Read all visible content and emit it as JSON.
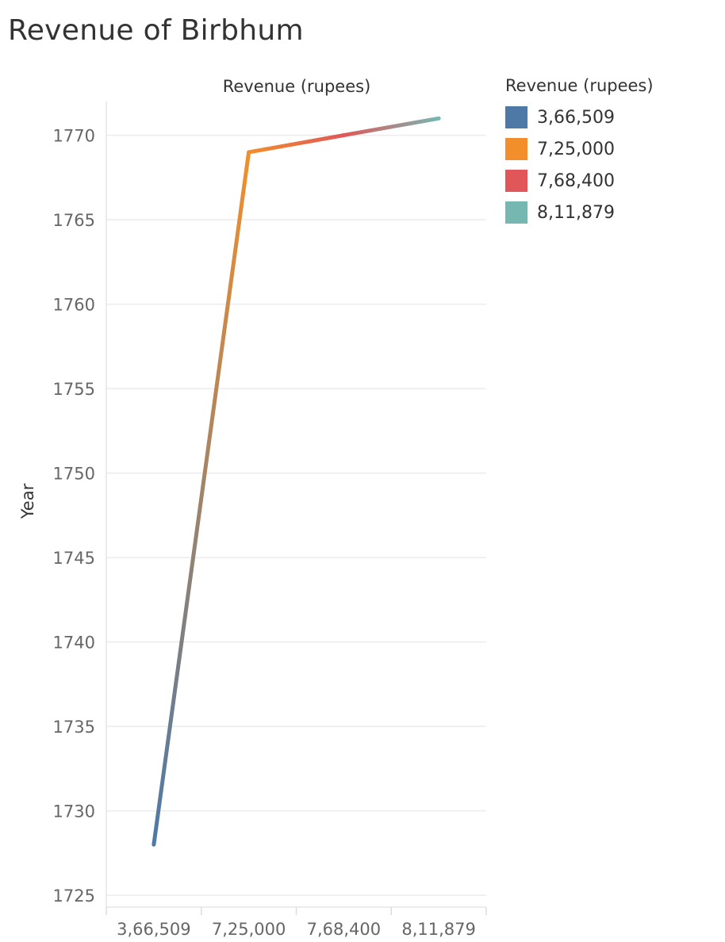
{
  "title": "Revenue of Birbhum",
  "chart_data": {
    "type": "line",
    "title": "Revenue of Birbhum",
    "xlabel": "Revenue (rupees)",
    "ylabel": "Year",
    "categories": [
      "3,66,509",
      "7,25,000",
      "7,68,400",
      "8,11,879"
    ],
    "y_ticks": [
      1725,
      1730,
      1735,
      1740,
      1745,
      1750,
      1755,
      1760,
      1765,
      1770
    ],
    "ylim": [
      1724.3,
      1772
    ],
    "points": [
      {
        "x": "3,66,509",
        "y": 1728
      },
      {
        "x": "7,25,000",
        "y": 1769
      },
      {
        "x": "7,68,400",
        "y": 1770
      },
      {
        "x": "8,11,879",
        "y": 1771
      }
    ],
    "grid": true,
    "legend": {
      "title": "Revenue (rupees)",
      "position": "right",
      "entries": [
        {
          "label": "3,66,509",
          "color": "#4e79a7"
        },
        {
          "label": "7,25,000",
          "color": "#f28e2b"
        },
        {
          "label": "7,68,400",
          "color": "#e15759"
        },
        {
          "label": "8,11,879",
          "color": "#76b7b2"
        }
      ]
    }
  }
}
